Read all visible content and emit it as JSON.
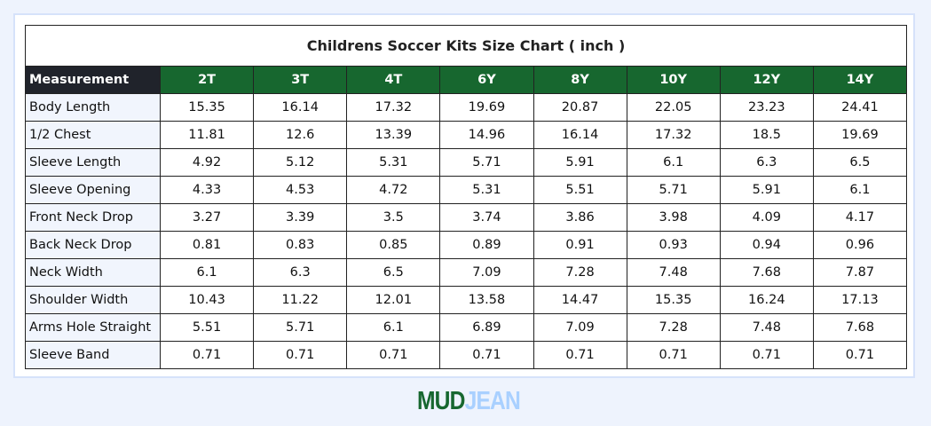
{
  "title": "Childrens Soccer Kits Size Chart  ( inch )",
  "headers": [
    "Measurement",
    "2T",
    "3T",
    "4T",
    "6Y",
    "8Y",
    "10Y",
    "12Y",
    "14Y"
  ],
  "rows": [
    [
      "Body Length",
      "15.35",
      "16.14",
      "17.32",
      "19.69",
      "20.87",
      "22.05",
      "23.23",
      "24.41"
    ],
    [
      "1/2 Chest",
      "11.81",
      "12.6",
      "13.39",
      "14.96",
      "16.14",
      "17.32",
      "18.5",
      "19.69"
    ],
    [
      "Sleeve Length",
      "4.92",
      "5.12",
      "5.31",
      "5.71",
      "5.91",
      "6.1",
      "6.3",
      "6.5"
    ],
    [
      "Sleeve Opening",
      "4.33",
      "4.53",
      "4.72",
      "5.31",
      "5.51",
      "5.71",
      "5.91",
      "6.1"
    ],
    [
      "Front Neck Drop",
      "3.27",
      "3.39",
      "3.5",
      "3.74",
      "3.86",
      "3.98",
      "4.09",
      "4.17"
    ],
    [
      "Back Neck Drop",
      "0.81",
      "0.83",
      "0.85",
      "0.89",
      "0.91",
      "0.93",
      "0.94",
      "0.96"
    ],
    [
      "Neck Width",
      "6.1",
      "6.3",
      "6.5",
      "7.09",
      "7.28",
      "7.48",
      "7.68",
      "7.87"
    ],
    [
      "Shoulder Width",
      "10.43",
      "11.22",
      "12.01",
      "13.58",
      "14.47",
      "15.35",
      "16.24",
      "17.13"
    ],
    [
      "Arms Hole Straight",
      "5.51",
      "5.71",
      "6.1",
      "6.89",
      "7.09",
      "7.28",
      "7.48",
      "7.68"
    ],
    [
      "Sleeve Band",
      "0.71",
      "0.71",
      "0.71",
      "0.71",
      "0.71",
      "0.71",
      "0.71",
      "0.71"
    ]
  ],
  "logo": {
    "part1": "MUD",
    "part2": "JEAN"
  },
  "colors": {
    "header_green": "#17672f",
    "header_dark": "#20232b",
    "logo_blue": "#a9d0ff"
  }
}
